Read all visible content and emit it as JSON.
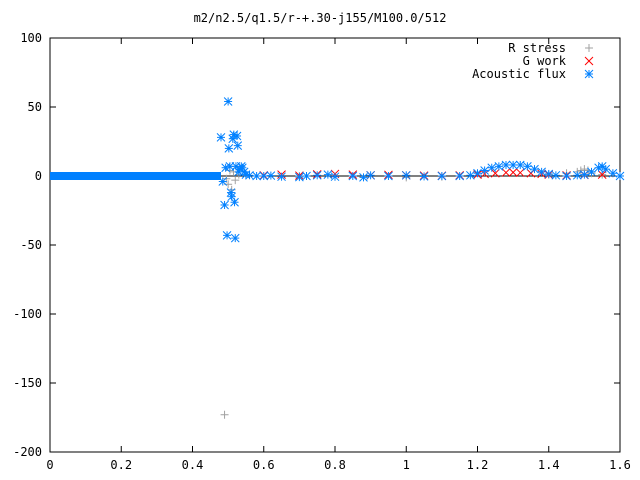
{
  "chart_data": {
    "type": "scatter",
    "title": "m2/n2.5/q1.5/r-+.30-j155/M100.0/512",
    "xlabel": "",
    "ylabel": "",
    "xlim": [
      0,
      1.6
    ],
    "ylim": [
      -200,
      100
    ],
    "x_ticks": [
      0,
      0.2,
      0.4,
      0.6,
      0.8,
      1,
      1.2,
      1.4,
      1.6
    ],
    "x_tick_labels": [
      "0",
      "0.2",
      "0.4",
      "0.6",
      "0.8",
      "1",
      "1.2",
      "1.4",
      "1.6"
    ],
    "y_ticks": [
      100,
      50,
      0,
      -50,
      -100,
      -150,
      -200
    ],
    "y_tick_labels": [
      "100",
      "50",
      "0",
      "-50",
      "-100",
      "-150",
      "-200"
    ],
    "grid": false,
    "legend_position": "top-right",
    "series": [
      {
        "name": "R stress",
        "marker": "plus",
        "color": "#a0a0a0",
        "points": [
          [
            0.49,
            -173
          ],
          [
            0.495,
            -2
          ],
          [
            0.5,
            -6
          ],
          [
            0.505,
            4
          ],
          [
            0.51,
            -10
          ],
          [
            0.515,
            3
          ],
          [
            0.52,
            -3
          ],
          [
            0.53,
            1
          ],
          [
            0.55,
            0.5
          ],
          [
            0.7,
            0
          ],
          [
            1.0,
            -1
          ],
          [
            1.1,
            -0.5
          ],
          [
            1.4,
            1
          ],
          [
            1.45,
            2
          ],
          [
            1.48,
            3
          ],
          [
            1.49,
            4
          ],
          [
            1.5,
            5
          ],
          [
            1.51,
            4
          ],
          [
            1.52,
            2
          ],
          [
            1.55,
            1
          ]
        ]
      },
      {
        "name": "G work",
        "marker": "cross",
        "color": "#ff0000",
        "points": [
          [
            0.6,
            0.5
          ],
          [
            0.65,
            1
          ],
          [
            0.7,
            0.3
          ],
          [
            0.75,
            1.2
          ],
          [
            0.8,
            1.5
          ],
          [
            0.85,
            1
          ],
          [
            0.9,
            0.5
          ],
          [
            0.95,
            0.8
          ],
          [
            1.0,
            0.5
          ],
          [
            1.05,
            0.3
          ],
          [
            1.1,
            0.2
          ],
          [
            1.15,
            0.5
          ],
          [
            1.2,
            1
          ],
          [
            1.22,
            1.5
          ],
          [
            1.25,
            2
          ],
          [
            1.28,
            2.5
          ],
          [
            1.3,
            2.6
          ],
          [
            1.32,
            2.4
          ],
          [
            1.35,
            2
          ],
          [
            1.38,
            1.5
          ],
          [
            1.4,
            1
          ],
          [
            1.45,
            0.5
          ],
          [
            1.5,
            0.8
          ],
          [
            1.55,
            1
          ]
        ]
      },
      {
        "name": "Acoustic flux",
        "marker": "star",
        "color": "#0080ff",
        "baseline": {
          "x_from": 0.0,
          "x_to": 0.48,
          "y": 0
        },
        "points": [
          [
            0.48,
            28
          ],
          [
            0.485,
            -4
          ],
          [
            0.49,
            -21
          ],
          [
            0.493,
            6
          ],
          [
            0.497,
            -43
          ],
          [
            0.5,
            54
          ],
          [
            0.502,
            20
          ],
          [
            0.505,
            7
          ],
          [
            0.508,
            -12
          ],
          [
            0.51,
            -15
          ],
          [
            0.513,
            27
          ],
          [
            0.516,
            30
          ],
          [
            0.518,
            -19
          ],
          [
            0.52,
            -45
          ],
          [
            0.522,
            7
          ],
          [
            0.525,
            29
          ],
          [
            0.527,
            22
          ],
          [
            0.53,
            3
          ],
          [
            0.533,
            5
          ],
          [
            0.537,
            7
          ],
          [
            0.54,
            6
          ],
          [
            0.545,
            3
          ],
          [
            0.55,
            1
          ],
          [
            0.56,
            0.5
          ],
          [
            0.58,
            0
          ],
          [
            0.6,
            0
          ],
          [
            0.62,
            0.3
          ],
          [
            0.65,
            -0.5
          ],
          [
            0.7,
            -0.8
          ],
          [
            0.72,
            0
          ],
          [
            0.75,
            0.5
          ],
          [
            0.78,
            1
          ],
          [
            0.8,
            -0.5
          ],
          [
            0.85,
            0
          ],
          [
            0.88,
            -1
          ],
          [
            0.9,
            0.5
          ],
          [
            0.95,
            0
          ],
          [
            1.0,
            0.5
          ],
          [
            1.05,
            -0.3
          ],
          [
            1.1,
            0
          ],
          [
            1.15,
            0
          ],
          [
            1.18,
            0.5
          ],
          [
            1.2,
            2
          ],
          [
            1.22,
            4
          ],
          [
            1.24,
            6
          ],
          [
            1.26,
            7
          ],
          [
            1.28,
            8
          ],
          [
            1.3,
            8
          ],
          [
            1.32,
            8
          ],
          [
            1.34,
            7
          ],
          [
            1.36,
            5
          ],
          [
            1.38,
            3
          ],
          [
            1.4,
            1.5
          ],
          [
            1.42,
            0.5
          ],
          [
            1.45,
            0
          ],
          [
            1.48,
            0.5
          ],
          [
            1.5,
            1
          ],
          [
            1.52,
            3
          ],
          [
            1.54,
            6
          ],
          [
            1.55,
            7
          ],
          [
            1.56,
            5
          ],
          [
            1.58,
            2
          ],
          [
            1.6,
            0
          ]
        ]
      }
    ]
  }
}
